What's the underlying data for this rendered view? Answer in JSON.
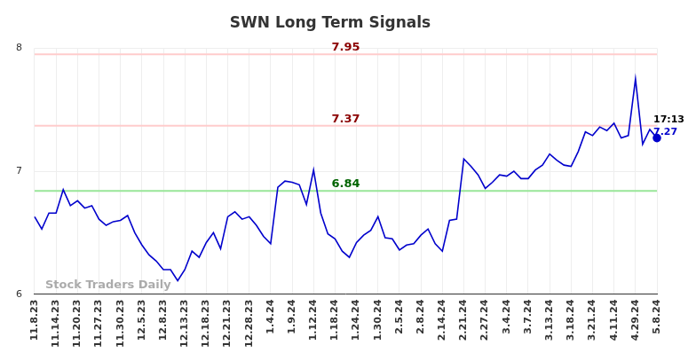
{
  "chart_data": {
    "type": "line",
    "title": "SWN Long Term Signals",
    "categories": [
      "11.8.23",
      null,
      null,
      "11.14.23",
      null,
      null,
      "11.20.23",
      null,
      null,
      "11.27.23",
      null,
      null,
      "11.30.23",
      null,
      null,
      "12.5.23",
      null,
      null,
      "12.8.23",
      null,
      null,
      "12.13.23",
      null,
      null,
      "12.18.23",
      null,
      null,
      "12.21.23",
      null,
      null,
      "12.28.23",
      null,
      null,
      "1.4.24",
      null,
      null,
      "1.9.24",
      null,
      null,
      "1.12.24",
      null,
      null,
      "1.18.24",
      null,
      null,
      "1.24.24",
      null,
      null,
      "1.30.24",
      null,
      null,
      "2.5.24",
      null,
      null,
      "2.8.24",
      null,
      null,
      "2.14.24",
      null,
      null,
      "2.21.24",
      null,
      null,
      "2.27.24",
      null,
      null,
      "3.4.24",
      null,
      null,
      "3.7.24",
      null,
      null,
      "3.13.24",
      null,
      null,
      "3.18.24",
      null,
      null,
      "3.21.24",
      null,
      null,
      "4.11.24",
      null,
      null,
      "4.29.24",
      null,
      null,
      "5.8.24"
    ],
    "values": [
      6.63,
      6.53,
      6.66,
      6.66,
      6.85,
      6.72,
      6.76,
      6.7,
      6.72,
      6.61,
      6.56,
      6.59,
      6.6,
      6.64,
      6.5,
      6.4,
      6.32,
      6.27,
      6.2,
      6.2,
      6.11,
      6.2,
      6.35,
      6.3,
      6.42,
      6.5,
      6.37,
      6.63,
      6.67,
      6.61,
      6.63,
      6.56,
      6.47,
      6.41,
      6.87,
      6.92,
      6.91,
      6.89,
      6.73,
      7.01,
      6.66,
      6.49,
      6.45,
      6.35,
      6.3,
      6.42,
      6.48,
      6.52,
      6.63,
      6.46,
      6.45,
      6.36,
      6.4,
      6.41,
      6.48,
      6.53,
      6.41,
      6.35,
      6.6,
      6.61,
      7.1,
      7.04,
      6.97,
      6.86,
      6.91,
      6.97,
      6.96,
      7.0,
      6.94,
      6.94,
      7.01,
      7.05,
      7.14,
      7.09,
      7.05,
      7.04,
      7.16,
      7.32,
      7.29,
      7.36,
      7.33,
      7.39,
      7.27,
      7.29,
      7.75,
      7.22,
      7.34,
      7.27
    ],
    "color": "#0000cc",
    "ylim": [
      6,
      8
    ],
    "yticks": [
      6,
      7,
      8
    ],
    "grid": true,
    "reference_lines": [
      {
        "value": 7.95,
        "label": "7.95",
        "color": "#ffcccc"
      },
      {
        "value": 7.37,
        "label": "7.37",
        "color": "#ffcccc"
      },
      {
        "value": 6.84,
        "label": "6.84",
        "color": "#99e699"
      }
    ],
    "end_label": {
      "text": "17:13",
      "value": 7.27,
      "label": "7.27"
    },
    "watermark": "Stock Traders Daily"
  }
}
